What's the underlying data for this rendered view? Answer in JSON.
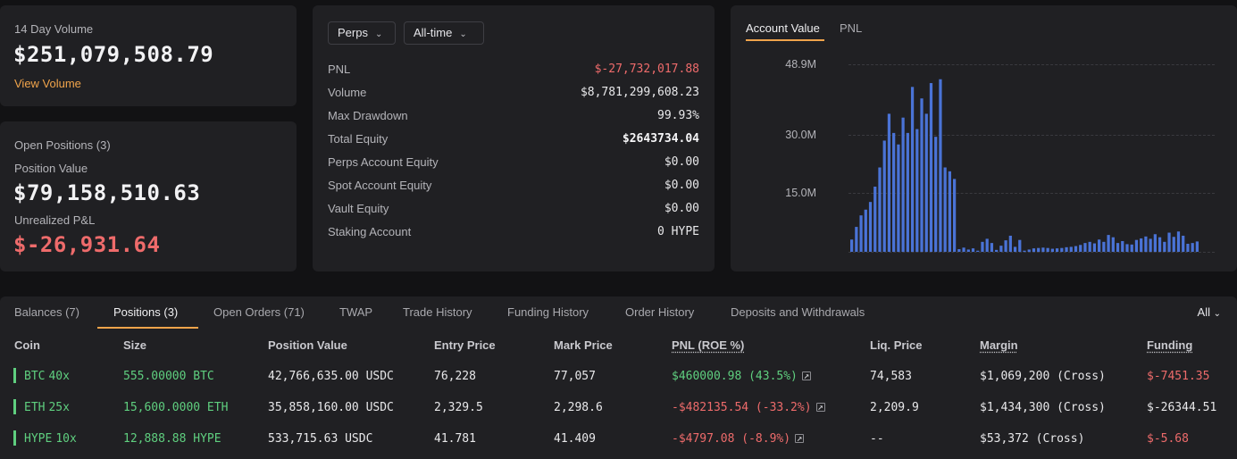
{
  "volume_card": {
    "label": "14 Day Volume",
    "value": "$251,079,508.79",
    "link": "View Volume"
  },
  "positions_card": {
    "title": "Open Positions (3)",
    "value_label": "Position Value",
    "value": "$79,158,510.63",
    "pnl_label": "Unrealized P&L",
    "pnl_value": "$-26,931.64"
  },
  "stats": {
    "market_select": "Perps",
    "range_select": "All-time",
    "rows": [
      {
        "label": "PNL",
        "value": "$-27,732,017.88",
        "tone": "red"
      },
      {
        "label": "Volume",
        "value": "$8,781,299,608.23",
        "tone": "normal"
      },
      {
        "label": "Max Drawdown",
        "value": "99.93%",
        "tone": "normal"
      },
      {
        "label": "Total Equity",
        "value": "$2643734.04",
        "tone": "bold"
      },
      {
        "label": "Perps Account Equity",
        "value": "$0.00",
        "tone": "normal"
      },
      {
        "label": "Spot Account Equity",
        "value": "$0.00",
        "tone": "normal"
      },
      {
        "label": "Vault Equity",
        "value": "$0.00",
        "tone": "normal"
      },
      {
        "label": "Staking Account",
        "value": "0 HYPE",
        "tone": "normal"
      }
    ]
  },
  "chart_tabs": [
    "Account Value",
    "PNL"
  ],
  "chart_data": {
    "type": "bar",
    "title": "",
    "xlabel": "",
    "ylabel": "",
    "ylim": [
      0,
      48.9
    ],
    "y_ticks": [
      "48.9M",
      "30.0M",
      "15.0M"
    ],
    "y_tick_values": [
      48.9,
      30.0,
      15.0
    ],
    "series": [
      {
        "color": "#4a73d6",
        "values": [
          3.2,
          6.5,
          9.5,
          11,
          13,
          17,
          22,
          29,
          36,
          31,
          28,
          35,
          31,
          43,
          32,
          40,
          36,
          44,
          30,
          45,
          22,
          21,
          19,
          0.7,
          1.1,
          0.6,
          0.9,
          0.3,
          2.6,
          3.4,
          2.3,
          0.5,
          1.6,
          3.0,
          4.2,
          1.3,
          3.1,
          0.3,
          0.6,
          0.9,
          1.0,
          1.1,
          1.0,
          0.8,
          0.9,
          1.0,
          1.2,
          1.3,
          1.5,
          1.8,
          2.3,
          2.6,
          2.2,
          3.2,
          2.6,
          4.4,
          3.8,
          2.3,
          2.8,
          2.0,
          1.9,
          3.1,
          3.5,
          4.0,
          3.4,
          4.6,
          3.8,
          2.6,
          5.0,
          3.9,
          5.3,
          4.2,
          2.1,
          2.3,
          2.7
        ]
      }
    ]
  },
  "bottom_tabs": {
    "items": [
      "Balances (7)",
      "Positions (3)",
      "Open Orders (71)",
      "TWAP",
      "Trade History",
      "Funding History",
      "Order History",
      "Deposits and Withdrawals"
    ],
    "filter": "All"
  },
  "table": {
    "headers": [
      "Coin",
      "Size",
      "Position Value",
      "Entry Price",
      "Mark Price",
      "PNL (ROE %)",
      "Liq. Price",
      "Margin",
      "Funding"
    ],
    "rows": [
      {
        "coin": "BTC",
        "lev": "40x",
        "size": "555.00000 BTC",
        "pos_value": "42,766,635.00 USDC",
        "entry": "76,228",
        "mark": "77,057",
        "pnl": "$460000.98 (43.5%)",
        "pnl_tone": "green",
        "liq": "74,583",
        "margin": "$1,069,200 (Cross)",
        "funding": "$-7451.35",
        "funding_tone": "red"
      },
      {
        "coin": "ETH",
        "lev": "25x",
        "size": "15,600.0000 ETH",
        "pos_value": "35,858,160.00 USDC",
        "entry": "2,329.5",
        "mark": "2,298.6",
        "pnl": "-$482135.54 (-33.2%)",
        "pnl_tone": "red",
        "liq": "2,209.9",
        "margin": "$1,434,300 (Cross)",
        "funding": "$-26344.51",
        "funding_tone": "normal"
      },
      {
        "coin": "HYPE",
        "lev": "10x",
        "size": "12,888.88 HYPE",
        "pos_value": "533,715.63 USDC",
        "entry": "41.781",
        "mark": "41.409",
        "pnl": "-$4797.08 (-8.9%)",
        "pnl_tone": "red",
        "liq": "--",
        "margin": "$53,372 (Cross)",
        "funding": "$-5.68",
        "funding_tone": "red"
      }
    ]
  }
}
